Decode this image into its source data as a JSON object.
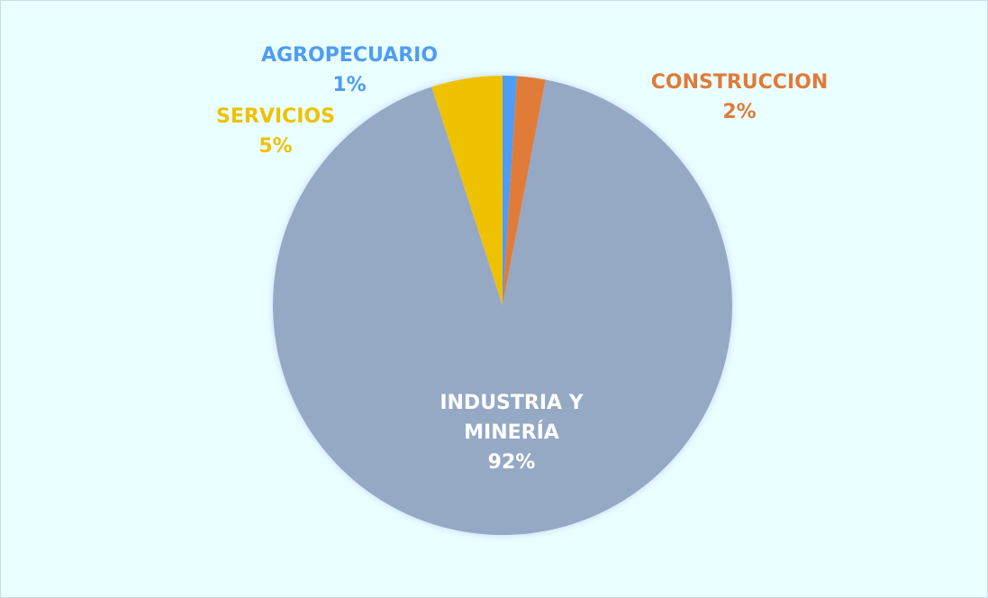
{
  "chart_data": {
    "type": "pie",
    "categories": [
      "AGROPECUARIO",
      "CONSTRUCCION",
      "INDUSTRIA Y MINERÍA",
      "SERVICIOS"
    ],
    "values": [
      1,
      2,
      92,
      5
    ],
    "value_labels": [
      "1%",
      "2%",
      "92%",
      "5%"
    ],
    "colors": [
      "#4f9cf5",
      "#e07b39",
      "#95a9c4",
      "#eec200"
    ]
  }
}
